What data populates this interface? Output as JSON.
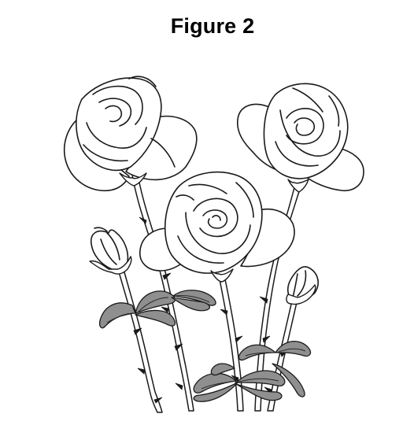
{
  "figure": {
    "title": "Figure 2"
  }
}
